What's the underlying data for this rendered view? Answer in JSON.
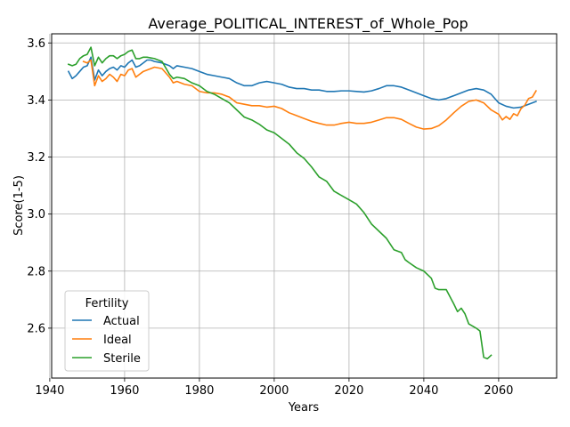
{
  "chart_data": {
    "type": "line",
    "title": "Average_POLITICAL_INTEREST_of_Whole_Pop",
    "xlabel": "Years",
    "ylabel": "Score(1-5)",
    "xlim": [
      1940.5,
      2075.5
    ],
    "ylim": [
      2.425,
      3.632
    ],
    "xticks": [
      1940,
      1960,
      1980,
      2000,
      2020,
      2040,
      2060
    ],
    "yticks": [
      2.6,
      2.8,
      3.0,
      3.2,
      3.4,
      3.6
    ],
    "grid": true,
    "legend": {
      "title": "Fertility",
      "location": "lower-left"
    },
    "series": [
      {
        "name": "Actual",
        "color": "#1f77b4",
        "points": [
          [
            1945,
            3.5
          ],
          [
            1946,
            3.475
          ],
          [
            1947,
            3.485
          ],
          [
            1948,
            3.5
          ],
          [
            1949,
            3.515
          ],
          [
            1950,
            3.52
          ],
          [
            1951,
            3.55
          ],
          [
            1952,
            3.47
          ],
          [
            1953,
            3.505
          ],
          [
            1954,
            3.485
          ],
          [
            1955,
            3.5
          ],
          [
            1956,
            3.51
          ],
          [
            1957,
            3.515
          ],
          [
            1958,
            3.505
          ],
          [
            1959,
            3.52
          ],
          [
            1960,
            3.515
          ],
          [
            1961,
            3.53
          ],
          [
            1962,
            3.54
          ],
          [
            1963,
            3.515
          ],
          [
            1964,
            3.52
          ],
          [
            1965,
            3.53
          ],
          [
            1966,
            3.54
          ],
          [
            1967,
            3.54
          ],
          [
            1968,
            3.535
          ],
          [
            1970,
            3.53
          ],
          [
            1972,
            3.52
          ],
          [
            1973,
            3.51
          ],
          [
            1974,
            3.52
          ],
          [
            1976,
            3.515
          ],
          [
            1978,
            3.51
          ],
          [
            1980,
            3.5
          ],
          [
            1982,
            3.49
          ],
          [
            1984,
            3.485
          ],
          [
            1986,
            3.48
          ],
          [
            1988,
            3.475
          ],
          [
            1990,
            3.46
          ],
          [
            1992,
            3.45
          ],
          [
            1994,
            3.45
          ],
          [
            1996,
            3.46
          ],
          [
            1998,
            3.465
          ],
          [
            2000,
            3.46
          ],
          [
            2002,
            3.455
          ],
          [
            2004,
            3.445
          ],
          [
            2006,
            3.44
          ],
          [
            2008,
            3.44
          ],
          [
            2010,
            3.435
          ],
          [
            2012,
            3.435
          ],
          [
            2014,
            3.43
          ],
          [
            2016,
            3.43
          ],
          [
            2018,
            3.432
          ],
          [
            2020,
            3.432
          ],
          [
            2022,
            3.43
          ],
          [
            2024,
            3.428
          ],
          [
            2026,
            3.432
          ],
          [
            2028,
            3.44
          ],
          [
            2030,
            3.45
          ],
          [
            2032,
            3.45
          ],
          [
            2034,
            3.445
          ],
          [
            2036,
            3.435
          ],
          [
            2038,
            3.425
          ],
          [
            2040,
            3.415
          ],
          [
            2042,
            3.405
          ],
          [
            2044,
            3.4
          ],
          [
            2046,
            3.405
          ],
          [
            2048,
            3.415
          ],
          [
            2050,
            3.425
          ],
          [
            2052,
            3.435
          ],
          [
            2054,
            3.44
          ],
          [
            2056,
            3.435
          ],
          [
            2058,
            3.42
          ],
          [
            2060,
            3.39
          ],
          [
            2062,
            3.378
          ],
          [
            2064,
            3.372
          ],
          [
            2066,
            3.375
          ],
          [
            2068,
            3.385
          ],
          [
            2070,
            3.395
          ]
        ]
      },
      {
        "name": "Ideal",
        "color": "#ff7f0e",
        "points": [
          [
            1949,
            3.535
          ],
          [
            1950,
            3.53
          ],
          [
            1951,
            3.54
          ],
          [
            1952,
            3.45
          ],
          [
            1953,
            3.485
          ],
          [
            1954,
            3.465
          ],
          [
            1955,
            3.475
          ],
          [
            1956,
            3.49
          ],
          [
            1957,
            3.48
          ],
          [
            1958,
            3.465
          ],
          [
            1959,
            3.49
          ],
          [
            1960,
            3.485
          ],
          [
            1961,
            3.505
          ],
          [
            1962,
            3.51
          ],
          [
            1963,
            3.48
          ],
          [
            1964,
            3.49
          ],
          [
            1965,
            3.5
          ],
          [
            1966,
            3.505
          ],
          [
            1967,
            3.51
          ],
          [
            1968,
            3.515
          ],
          [
            1970,
            3.51
          ],
          [
            1972,
            3.48
          ],
          [
            1973,
            3.46
          ],
          [
            1974,
            3.465
          ],
          [
            1976,
            3.455
          ],
          [
            1978,
            3.45
          ],
          [
            1980,
            3.43
          ],
          [
            1982,
            3.425
          ],
          [
            1984,
            3.425
          ],
          [
            1986,
            3.42
          ],
          [
            1988,
            3.41
          ],
          [
            1990,
            3.39
          ],
          [
            1992,
            3.385
          ],
          [
            1994,
            3.38
          ],
          [
            1996,
            3.38
          ],
          [
            1998,
            3.375
          ],
          [
            2000,
            3.378
          ],
          [
            2002,
            3.37
          ],
          [
            2004,
            3.355
          ],
          [
            2006,
            3.345
          ],
          [
            2008,
            3.335
          ],
          [
            2010,
            3.325
          ],
          [
            2012,
            3.318
          ],
          [
            2014,
            3.312
          ],
          [
            2016,
            3.312
          ],
          [
            2018,
            3.318
          ],
          [
            2020,
            3.322
          ],
          [
            2022,
            3.318
          ],
          [
            2024,
            3.318
          ],
          [
            2026,
            3.322
          ],
          [
            2028,
            3.33
          ],
          [
            2030,
            3.338
          ],
          [
            2032,
            3.338
          ],
          [
            2034,
            3.332
          ],
          [
            2036,
            3.318
          ],
          [
            2038,
            3.305
          ],
          [
            2040,
            3.298
          ],
          [
            2042,
            3.3
          ],
          [
            2044,
            3.31
          ],
          [
            2046,
            3.33
          ],
          [
            2048,
            3.355
          ],
          [
            2050,
            3.378
          ],
          [
            2052,
            3.395
          ],
          [
            2054,
            3.4
          ],
          [
            2056,
            3.39
          ],
          [
            2058,
            3.365
          ],
          [
            2060,
            3.35
          ],
          [
            2061,
            3.33
          ],
          [
            2062,
            3.342
          ],
          [
            2063,
            3.332
          ],
          [
            2064,
            3.352
          ],
          [
            2065,
            3.345
          ],
          [
            2066,
            3.37
          ],
          [
            2067,
            3.382
          ],
          [
            2068,
            3.405
          ],
          [
            2069,
            3.41
          ],
          [
            2070,
            3.432
          ]
        ]
      },
      {
        "name": "Sterile",
        "color": "#2ca02c",
        "points": [
          [
            1945,
            3.525
          ],
          [
            1946,
            3.52
          ],
          [
            1947,
            3.525
          ],
          [
            1948,
            3.545
          ],
          [
            1949,
            3.555
          ],
          [
            1950,
            3.56
          ],
          [
            1951,
            3.585
          ],
          [
            1952,
            3.52
          ],
          [
            1953,
            3.55
          ],
          [
            1954,
            3.53
          ],
          [
            1955,
            3.545
          ],
          [
            1956,
            3.555
          ],
          [
            1957,
            3.555
          ],
          [
            1958,
            3.545
          ],
          [
            1959,
            3.555
          ],
          [
            1960,
            3.56
          ],
          [
            1961,
            3.57
          ],
          [
            1962,
            3.575
          ],
          [
            1963,
            3.545
          ],
          [
            1964,
            3.545
          ],
          [
            1965,
            3.55
          ],
          [
            1966,
            3.55
          ],
          [
            1968,
            3.545
          ],
          [
            1970,
            3.535
          ],
          [
            1972,
            3.49
          ],
          [
            1973,
            3.475
          ],
          [
            1974,
            3.48
          ],
          [
            1976,
            3.475
          ],
          [
            1978,
            3.46
          ],
          [
            1980,
            3.45
          ],
          [
            1982,
            3.43
          ],
          [
            1984,
            3.42
          ],
          [
            1986,
            3.405
          ],
          [
            1988,
            3.39
          ],
          [
            1990,
            3.365
          ],
          [
            1992,
            3.34
          ],
          [
            1994,
            3.33
          ],
          [
            1996,
            3.315
          ],
          [
            1998,
            3.295
          ],
          [
            2000,
            3.285
          ],
          [
            2002,
            3.265
          ],
          [
            2004,
            3.245
          ],
          [
            2006,
            3.215
          ],
          [
            2008,
            3.195
          ],
          [
            2010,
            3.165
          ],
          [
            2012,
            3.13
          ],
          [
            2014,
            3.115
          ],
          [
            2016,
            3.08
          ],
          [
            2018,
            3.065
          ],
          [
            2020,
            3.05
          ],
          [
            2022,
            3.035
          ],
          [
            2024,
            3.005
          ],
          [
            2026,
            2.965
          ],
          [
            2028,
            2.94
          ],
          [
            2030,
            2.915
          ],
          [
            2032,
            2.875
          ],
          [
            2034,
            2.865
          ],
          [
            2035,
            2.84
          ],
          [
            2036,
            2.83
          ],
          [
            2038,
            2.812
          ],
          [
            2040,
            2.8
          ],
          [
            2042,
            2.775
          ],
          [
            2043,
            2.74
          ],
          [
            2044,
            2.735
          ],
          [
            2046,
            2.735
          ],
          [
            2048,
            2.685
          ],
          [
            2049,
            2.658
          ],
          [
            2050,
            2.67
          ],
          [
            2051,
            2.65
          ],
          [
            2052,
            2.615
          ],
          [
            2054,
            2.6
          ],
          [
            2055,
            2.59
          ],
          [
            2056,
            2.498
          ],
          [
            2057,
            2.493
          ],
          [
            2058,
            2.505
          ]
        ]
      }
    ]
  }
}
